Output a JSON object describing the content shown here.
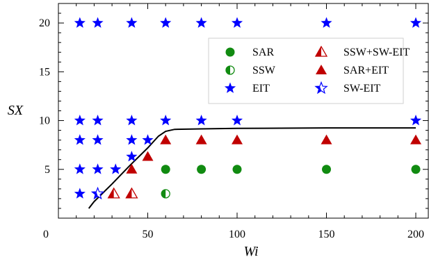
{
  "chart_data": {
    "type": "scatter",
    "xlabel": "Wi",
    "ylabel": "SX",
    "xlim": [
      0,
      207
    ],
    "ylim": [
      0,
      22
    ],
    "x_ticks": [
      0,
      50,
      100,
      150,
      200
    ],
    "y_ticks": [
      5,
      10,
      15,
      20
    ],
    "grid": false,
    "legend_position": "top-right",
    "colors": {
      "green": "#118b11",
      "red": "#c00000",
      "blue": "#0000ff"
    },
    "series": [
      {
        "name": "SAR",
        "marker": "circle-filled",
        "color": "#118b11",
        "points": [
          [
            60,
            5
          ],
          [
            80,
            5
          ],
          [
            100,
            5
          ],
          [
            150,
            5
          ],
          [
            200,
            5
          ]
        ]
      },
      {
        "name": "SSW",
        "marker": "circle-half",
        "color": "#118b11",
        "points": [
          [
            60,
            2.5
          ]
        ]
      },
      {
        "name": "EIT",
        "marker": "star-filled",
        "color": "#0000ff",
        "points": [
          [
            12,
            20
          ],
          [
            22,
            20
          ],
          [
            41,
            20
          ],
          [
            60,
            20
          ],
          [
            80,
            20
          ],
          [
            100,
            20
          ],
          [
            150,
            20
          ],
          [
            200,
            20
          ],
          [
            12,
            10
          ],
          [
            22,
            10
          ],
          [
            41,
            10
          ],
          [
            60,
            10
          ],
          [
            80,
            10
          ],
          [
            100,
            10
          ],
          [
            200,
            10
          ],
          [
            12,
            8
          ],
          [
            22,
            8
          ],
          [
            41,
            8
          ],
          [
            50,
            8
          ],
          [
            41,
            6.3
          ],
          [
            12,
            5
          ],
          [
            22,
            5
          ],
          [
            32,
            5
          ],
          [
            12,
            2.5
          ]
        ]
      },
      {
        "name": "SSW+SW-EIT",
        "marker": "triangle-half",
        "color": "#c00000",
        "points": [
          [
            31,
            2.5
          ],
          [
            41,
            2.5
          ]
        ]
      },
      {
        "name": "SAR+EIT",
        "marker": "triangle-filled",
        "color": "#c00000",
        "points": [
          [
            41,
            5
          ],
          [
            50,
            6.3
          ],
          [
            60,
            8
          ],
          [
            80,
            8
          ],
          [
            100,
            8
          ],
          [
            150,
            8
          ],
          [
            200,
            8
          ]
        ]
      },
      {
        "name": "SW-EIT",
        "marker": "star-half",
        "color": "#0000ff",
        "points": [
          [
            22,
            2.5
          ]
        ]
      }
    ],
    "boundary_line": {
      "points": [
        [
          17,
          1
        ],
        [
          20,
          1.7
        ],
        [
          30,
          3.5
        ],
        [
          40,
          5.4
        ],
        [
          50,
          7.2
        ],
        [
          56,
          8.4
        ],
        [
          60,
          8.9
        ],
        [
          65,
          9.1
        ],
        [
          80,
          9.15
        ],
        [
          100,
          9.2
        ],
        [
          150,
          9.25
        ],
        [
          200,
          9.25
        ]
      ]
    }
  }
}
